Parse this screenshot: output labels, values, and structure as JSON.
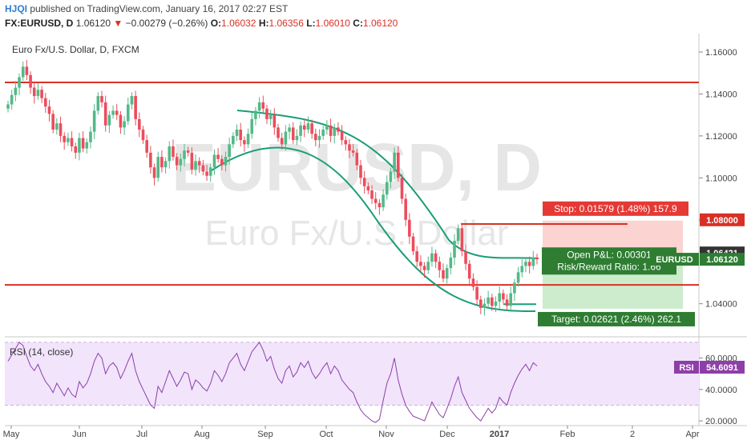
{
  "header": {
    "logo": "HJQI",
    "published": "published on TradingView.com, January 16, 2017 02:27 EST",
    "symbol": "FX:EURUSD, D",
    "last": "1.06120",
    "change": "−0.00279 (−0.26%)",
    "open_label": "O:",
    "open": "1.06032",
    "high_label": "H:",
    "high": "1.06356",
    "low_label": "L:",
    "low": "1.06010",
    "close_label": "C:",
    "close": "1.06120"
  },
  "chart_data": {
    "type": "candlestick",
    "title": "Euro Fx/U.S. Dollar, D, FXCM",
    "watermark": "EURUSD, D",
    "watermark_sub": "Euro Fx/U.S. Dollar",
    "price_axis": {
      "ylim": [
        1.025,
        1.168
      ],
      "ticks": [
        "1.16000",
        "1.14000",
        "1.12000",
        "1.10000",
        "1.08000",
        "1.04000"
      ]
    },
    "x_axis": {
      "labels": [
        "May",
        "Jun",
        "Jul",
        "Aug",
        "Sep",
        "Oct",
        "Nov",
        "Dec",
        "2017",
        "Feb",
        "2",
        "Apr"
      ]
    },
    "horizontal_lines": [
      {
        "value": 1.1455,
        "color": "#d93025"
      },
      {
        "value": 1.049,
        "color": "#d93025"
      }
    ],
    "stop_line": {
      "value": 1.078,
      "color": "#d93025"
    },
    "target_line": {
      "value": 1.0398,
      "color": "#1a9e78"
    },
    "price_tags": [
      {
        "value": 1.08,
        "text": "1.08000",
        "color": "#d93025"
      },
      {
        "value": 1.06421,
        "text": "1.06421",
        "color": "#333333"
      },
      {
        "value": 1.0612,
        "text": "1.06120",
        "color": "#2e7d32",
        "label": "EURUSD"
      }
    ],
    "position": {
      "entry": 1.0638,
      "stop": 1.0796,
      "target": 1.0376,
      "stop_text": "Stop: 0.01579 (1.48%) 157.9",
      "pnl_text": "Open P&L: 0.00301",
      "rr_text": "Risk/Reward Ratio: 1.66",
      "target_text": "Target: 0.02621 (2.46%) 262.1"
    },
    "candles_close": [
      1.135,
      1.1395,
      1.143,
      1.148,
      1.153,
      1.149,
      1.143,
      1.139,
      1.142,
      1.138,
      1.134,
      1.1305,
      1.123,
      1.126,
      1.12,
      1.117,
      1.119,
      1.115,
      1.112,
      1.119,
      1.114,
      1.117,
      1.122,
      1.132,
      1.139,
      1.136,
      1.125,
      1.13,
      1.132,
      1.13,
      1.124,
      1.127,
      1.135,
      1.139,
      1.128,
      1.123,
      1.118,
      1.112,
      1.105,
      1.1,
      1.11,
      1.105,
      1.108,
      1.115,
      1.11,
      1.106,
      1.109,
      1.113,
      1.112,
      1.104,
      1.108,
      1.106,
      1.103,
      1.101,
      1.105,
      1.111,
      1.109,
      1.106,
      1.11,
      1.116,
      1.12,
      1.123,
      1.118,
      1.116,
      1.121,
      1.128,
      1.132,
      1.136,
      1.133,
      1.128,
      1.13,
      1.124,
      1.119,
      1.116,
      1.122,
      1.124,
      1.118,
      1.12,
      1.125,
      1.123,
      1.126,
      1.121,
      1.118,
      1.12,
      1.123,
      1.125,
      1.12,
      1.124,
      1.122,
      1.118,
      1.116,
      1.113,
      1.112,
      1.106,
      1.1,
      1.096,
      1.094,
      1.09,
      1.088,
      1.086,
      1.092,
      1.098,
      1.103,
      1.112,
      1.1,
      1.09,
      1.08,
      1.072,
      1.065,
      1.06,
      1.058,
      1.056,
      1.06,
      1.064,
      1.06,
      1.056,
      1.052,
      1.057,
      1.062,
      1.07,
      1.076,
      1.065,
      1.059,
      1.052,
      1.048,
      1.042,
      1.038,
      1.04,
      1.043,
      1.039,
      1.041,
      1.045,
      1.042,
      1.039,
      1.045,
      1.05,
      1.055,
      1.058,
      1.06,
      1.058,
      1.062,
      1.0612
    ],
    "rsi": {
      "label": "RSI (14, close)",
      "value": 54.6091,
      "tag_text": "54.6091",
      "tag_label": "RSI",
      "upper": 70,
      "lower": 30,
      "ylim": [
        18,
        72
      ],
      "ticks": [
        "60.0000",
        "40.0000",
        "20.0000"
      ],
      "values": [
        58,
        62,
        66,
        70,
        68,
        61,
        55,
        52,
        56,
        50,
        45,
        42,
        38,
        44,
        40,
        36,
        41,
        37,
        35,
        45,
        41,
        44,
        50,
        58,
        63,
        60,
        50,
        55,
        57,
        54,
        47,
        52,
        58,
        63,
        52,
        45,
        40,
        35,
        30,
        28,
        42,
        38,
        45,
        52,
        47,
        42,
        46,
        51,
        50,
        40,
        46,
        44,
        41,
        39,
        44,
        52,
        49,
        45,
        50,
        57,
        60,
        63,
        56,
        52,
        58,
        64,
        67,
        70,
        65,
        58,
        61,
        53,
        47,
        44,
        52,
        55,
        48,
        51,
        57,
        54,
        58,
        51,
        47,
        50,
        54,
        57,
        50,
        55,
        52,
        46,
        43,
        40,
        38,
        32,
        27,
        24,
        22,
        20,
        19,
        21,
        33,
        44,
        50,
        60,
        46,
        37,
        30,
        26,
        23,
        22,
        21,
        20,
        26,
        32,
        28,
        24,
        22,
        28,
        34,
        42,
        48,
        38,
        33,
        28,
        25,
        22,
        20,
        24,
        28,
        25,
        28,
        35,
        32,
        30,
        38,
        44,
        49,
        53,
        56,
        52,
        57,
        55
      ]
    }
  }
}
